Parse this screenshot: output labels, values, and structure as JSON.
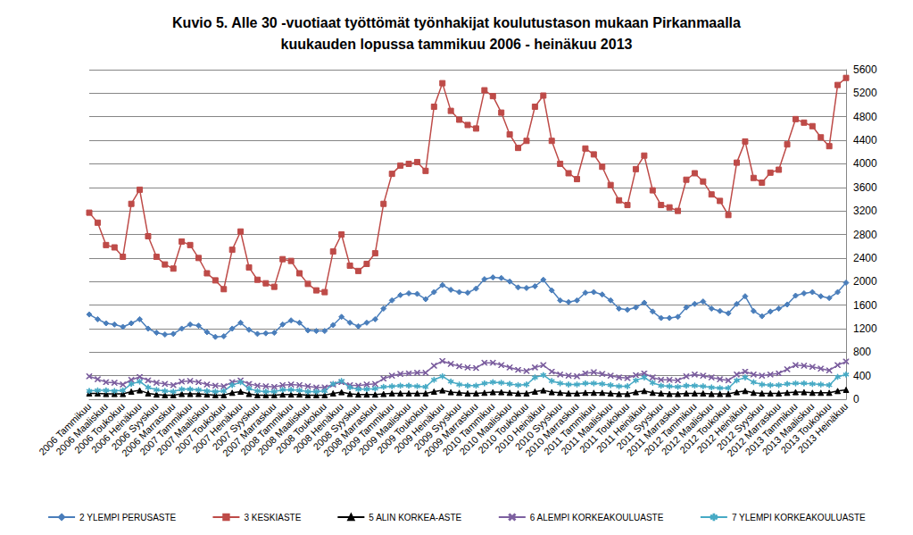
{
  "chart_data": {
    "type": "line",
    "title": "Kuvio 5. Alle 30 -vuotiaat työttömät työnhakijat koulutustason mukaan Pirkanmaalla\nkuukauden lopussa tammikuu 2006 - heinäkuu 2013",
    "categories": [
      "2006 Tammikuu",
      null,
      "2006 Maaliskuu",
      null,
      "2006 Toukokuu",
      null,
      "2006 Heinäkuu",
      null,
      "2006 Syyskuu",
      null,
      "2006 Marraskuu",
      null,
      "2007 Tammikuu",
      null,
      "2007 Maaliskuu",
      null,
      "2007 Toukokuu",
      null,
      "2007 Heinäkuu",
      null,
      "2007 Syyskuu",
      null,
      "2007 Marraskuu",
      null,
      "2008 Tammikuu",
      null,
      "2008 Maaliskuu",
      null,
      "2008 Toukokuu",
      null,
      "2008 Heinäkuu",
      null,
      "2008 Syyskuu",
      null,
      "2008 Marraskuu",
      null,
      "2009 Tammikuu",
      null,
      "2009 Maaliskuu",
      null,
      "2009 Toukokuu",
      null,
      "2009 Heinäkuu",
      null,
      "2009 Syyskuu",
      null,
      "2009 Marraskuu",
      null,
      "2010 Tammikuu",
      null,
      "2010 Maaliskuu",
      null,
      "2010 Toukokuu",
      null,
      "2010 Heinäkuu",
      null,
      "2010 Syyskuu",
      null,
      "2010 Marraskuu",
      null,
      "2011 Tammikuu",
      null,
      "2011 Maaliskuu",
      null,
      "2011 Toukokuu",
      null,
      "2011 Heinäkuu",
      null,
      "2011 Syyskuu",
      null,
      "2011 Marraskuu",
      null,
      "2012 Tammikuu",
      null,
      "2012 Maaliskuu",
      null,
      "2012 Toukokuu",
      null,
      "2012 Heinäkuu",
      null,
      "2012 Syyskuu",
      null,
      "2012 Marraskuu",
      null,
      "2013 Tammikuu",
      null,
      "2013 Maaliskuu",
      null,
      "2013 Toukokuu",
      null,
      "2013 Heinäkuu"
    ],
    "series": [
      {
        "name": "2 YLEMPI PERUSASTE",
        "color": "#4a7ebb",
        "marker": "diamond",
        "values": [
          1440,
          1360,
          1290,
          1270,
          1230,
          1290,
          1360,
          1200,
          1130,
          1100,
          1110,
          1200,
          1270,
          1250,
          1140,
          1060,
          1070,
          1200,
          1300,
          1180,
          1110,
          1120,
          1130,
          1270,
          1340,
          1300,
          1170,
          1160,
          1160,
          1260,
          1400,
          1300,
          1240,
          1300,
          1360,
          1540,
          1680,
          1770,
          1800,
          1790,
          1700,
          1820,
          1940,
          1860,
          1820,
          1810,
          1880,
          2040,
          2070,
          2060,
          2000,
          1900,
          1890,
          1920,
          2030,
          1850,
          1680,
          1650,
          1680,
          1810,
          1820,
          1780,
          1680,
          1540,
          1520,
          1560,
          1640,
          1490,
          1380,
          1380,
          1400,
          1560,
          1620,
          1660,
          1540,
          1500,
          1460,
          1620,
          1750,
          1500,
          1410,
          1490,
          1540,
          1610,
          1760,
          1800,
          1820,
          1750,
          1720,
          1820,
          1980
        ]
      },
      {
        "name": "3 KESKIASTE",
        "color": "#be4b48",
        "marker": "square",
        "values": [
          3170,
          3000,
          2620,
          2580,
          2420,
          3320,
          3560,
          2770,
          2420,
          2290,
          2220,
          2680,
          2620,
          2400,
          2140,
          2020,
          1870,
          2540,
          2850,
          2240,
          2030,
          1970,
          1910,
          2380,
          2350,
          2140,
          1960,
          1850,
          1820,
          2510,
          2800,
          2270,
          2180,
          2300,
          2480,
          3320,
          3830,
          3970,
          4000,
          4030,
          3880,
          4970,
          5370,
          4900,
          4750,
          4660,
          4600,
          5250,
          5150,
          4870,
          4500,
          4270,
          4390,
          4970,
          5160,
          4390,
          4000,
          3840,
          3740,
          4260,
          4160,
          3950,
          3640,
          3380,
          3300,
          3910,
          4140,
          3550,
          3300,
          3260,
          3200,
          3730,
          3840,
          3700,
          3480,
          3370,
          3130,
          4020,
          4380,
          3760,
          3680,
          3850,
          3900,
          4330,
          4760,
          4700,
          4640,
          4450,
          4300,
          5340,
          5460
        ]
      },
      {
        "name": "5 ALIN KORKEA-ASTE",
        "color": "#000000",
        "marker": "triangle",
        "values": [
          100,
          100,
          90,
          90,
          90,
          130,
          150,
          100,
          80,
          70,
          70,
          90,
          90,
          90,
          80,
          70,
          70,
          110,
          130,
          90,
          70,
          70,
          70,
          80,
          80,
          80,
          70,
          70,
          70,
          100,
          120,
          90,
          80,
          80,
          80,
          90,
          100,
          100,
          100,
          100,
          100,
          130,
          150,
          120,
          110,
          100,
          100,
          110,
          120,
          120,
          110,
          100,
          100,
          130,
          150,
          120,
          110,
          100,
          100,
          110,
          110,
          110,
          100,
          90,
          90,
          120,
          140,
          110,
          100,
          90,
          90,
          100,
          100,
          100,
          90,
          90,
          90,
          120,
          140,
          110,
          100,
          100,
          100,
          110,
          120,
          120,
          110,
          110,
          110,
          140,
          160
        ]
      },
      {
        "name": "6 ALEMPI KORKEAKOULUASTE",
        "color": "#7d60a0",
        "marker": "x",
        "values": [
          390,
          340,
          290,
          280,
          250,
          330,
          380,
          320,
          280,
          260,
          240,
          300,
          310,
          290,
          250,
          230,
          220,
          290,
          320,
          260,
          230,
          220,
          210,
          240,
          250,
          240,
          220,
          200,
          200,
          250,
          290,
          240,
          230,
          250,
          260,
          350,
          400,
          430,
          440,
          450,
          450,
          570,
          650,
          600,
          560,
          540,
          530,
          620,
          620,
          580,
          540,
          500,
          480,
          540,
          580,
          470,
          420,
          400,
          390,
          440,
          460,
          430,
          400,
          370,
          360,
          410,
          440,
          370,
          330,
          330,
          320,
          390,
          420,
          400,
          370,
          340,
          320,
          420,
          470,
          420,
          400,
          420,
          440,
          510,
          580,
          570,
          550,
          520,
          490,
          580,
          640
        ]
      },
      {
        "name": "7 YLEMPI KORKEAKOULUASTE",
        "color": "#46aac5",
        "marker": "star",
        "values": [
          140,
          150,
          150,
          140,
          150,
          260,
          300,
          200,
          160,
          140,
          130,
          170,
          170,
          160,
          140,
          130,
          140,
          240,
          290,
          180,
          140,
          130,
          130,
          160,
          160,
          150,
          130,
          130,
          140,
          260,
          310,
          200,
          170,
          170,
          180,
          210,
          220,
          230,
          230,
          220,
          210,
          330,
          390,
          300,
          250,
          230,
          230,
          270,
          290,
          280,
          260,
          240,
          250,
          370,
          410,
          310,
          270,
          250,
          250,
          270,
          270,
          260,
          240,
          220,
          220,
          320,
          370,
          280,
          230,
          220,
          210,
          230,
          230,
          220,
          200,
          190,
          190,
          320,
          370,
          290,
          250,
          240,
          240,
          260,
          270,
          270,
          260,
          250,
          240,
          380,
          420
        ]
      }
    ],
    "ylim": [
      0,
      5600
    ],
    "yticks": [
      0,
      400,
      800,
      1200,
      1600,
      2000,
      2400,
      2800,
      3200,
      3600,
      4000,
      4400,
      4800,
      5200,
      5600
    ],
    "grid": true,
    "legend": "bottom"
  }
}
